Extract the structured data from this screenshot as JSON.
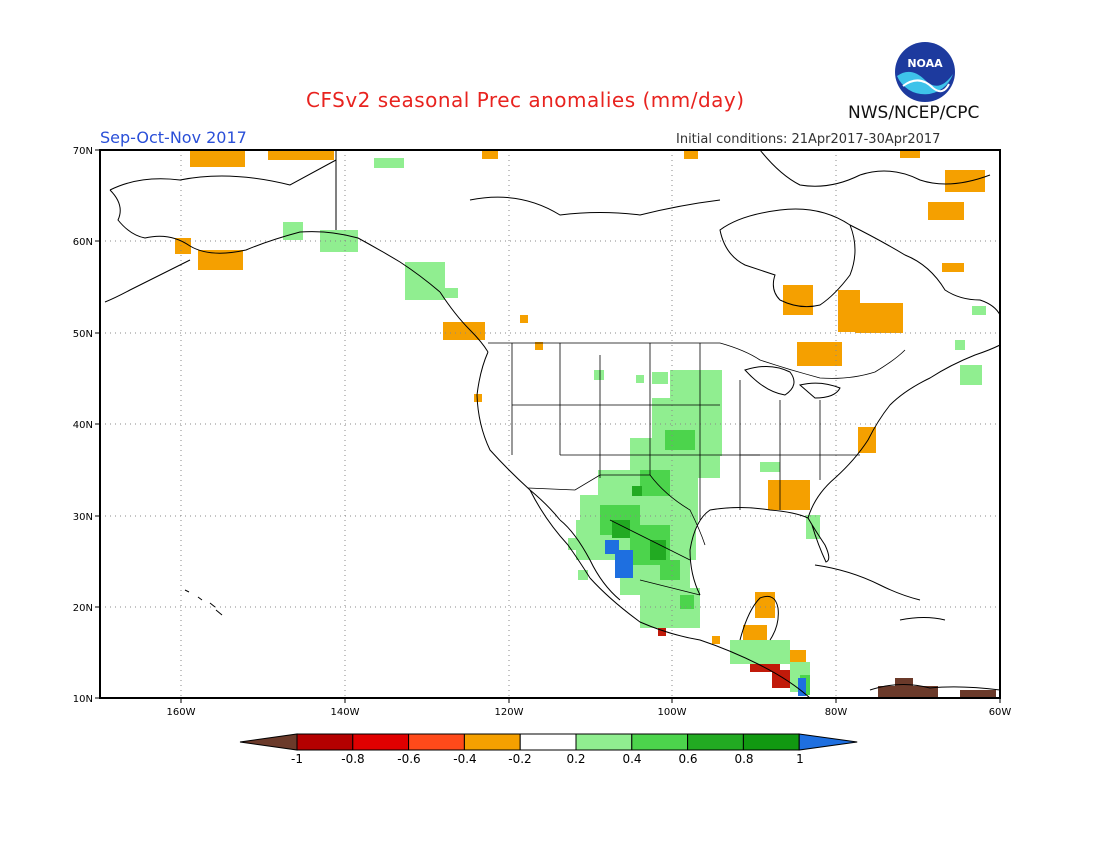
{
  "header": {
    "title": "CFSv2 seasonal Prec anomalies (mm/day)",
    "season": "Sep-Oct-Nov 2017",
    "initial_conditions": "Initial conditions: 21Apr2017-30Apr2017",
    "agency": "NWS/NCEP/CPC",
    "logo_text": "NOAA"
  },
  "map": {
    "lon_ticks": [
      "160W",
      "140W",
      "120W",
      "100W",
      "80W",
      "60W"
    ],
    "lat_ticks": [
      "70N",
      "60N",
      "50N",
      "40N",
      "30N",
      "20N",
      "10N"
    ]
  },
  "legend": {
    "labels": [
      "-1",
      "-0.8",
      "-0.6",
      "-0.4",
      "-0.2",
      "0.2",
      "0.4",
      "0.6",
      "0.8",
      "1"
    ],
    "colors": [
      "#6b3a2a",
      "#b40000",
      "#e00000",
      "#ff4a1a",
      "#f5a000",
      "#ffffff",
      "#90ee90",
      "#4cd44c",
      "#22aa22",
      "#119911",
      "#1e6fe0"
    ]
  },
  "colors": {
    "title": "#e8231f",
    "season": "#2a4fd8",
    "dry": "#f5a000",
    "very_dry": "#b40000",
    "wet_light": "#90ee90",
    "wet": "#4cd44c",
    "wet_heavy": "#22aa22",
    "wettest": "#1e6fe0"
  }
}
